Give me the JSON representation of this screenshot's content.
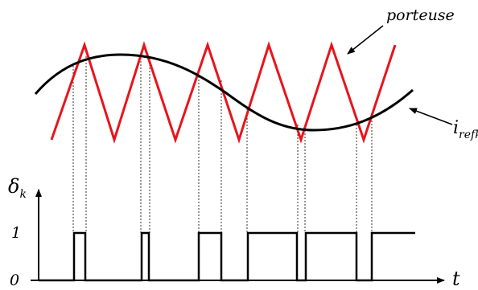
{
  "labels": {
    "carrier": "porteuse",
    "reference_main": "i",
    "reference_sub": "refk",
    "y_axis_main": "δ",
    "y_axis_sub": "k",
    "x_axis": "t",
    "level_high": "1",
    "level_low": "0"
  },
  "colors": {
    "carrier": "#e8141c",
    "reference": "#000000",
    "pwm": "#000000",
    "projection": "#000000"
  }
}
